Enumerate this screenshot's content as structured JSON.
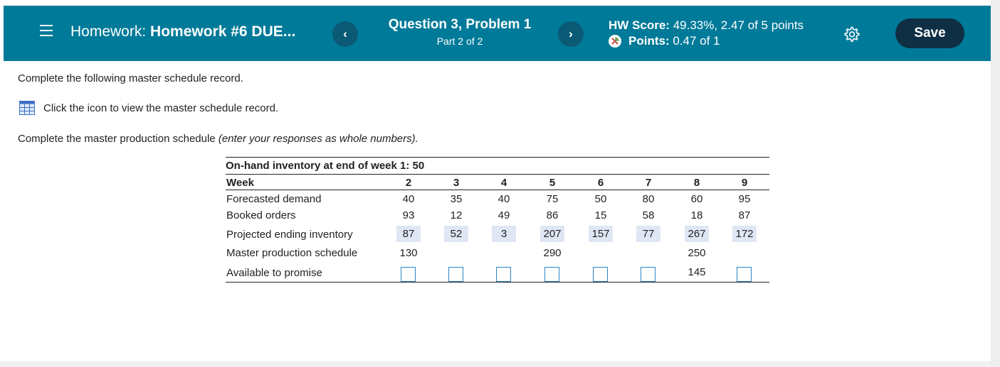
{
  "header": {
    "hw_prefix": "Homework:",
    "hw_name": "Homework #6 DUE...",
    "question_title": "Question 3, Problem 1",
    "question_part": "Part 2 of 2",
    "hw_score_label": "HW Score:",
    "hw_score_value": "49.33%, 2.47 of 5 points",
    "points_label": "Points:",
    "points_value": "0.47 of 1",
    "save_label": "Save",
    "prev_symbol": "‹",
    "next_symbol": "›",
    "colors": {
      "bar": "#007a99",
      "nav": "#0b5a75",
      "save": "#0f2f44"
    }
  },
  "content": {
    "instruction": "Complete the following master schedule record.",
    "icon_link_text": "Click the icon to view the master schedule record.",
    "complete_text": "Complete the master production schedule ",
    "complete_hint": "(enter your responses as whole numbers)."
  },
  "table": {
    "onhand": "On-hand inventory at end of week 1: 50",
    "week_label": "Week",
    "weeks": [
      "2",
      "3",
      "4",
      "5",
      "6",
      "7",
      "8",
      "9"
    ],
    "rows": {
      "forecast": {
        "label": "Forecasted demand",
        "values": [
          "40",
          "35",
          "40",
          "75",
          "50",
          "80",
          "60",
          "95"
        ]
      },
      "booked": {
        "label": "Booked orders",
        "values": [
          "93",
          "12",
          "49",
          "86",
          "15",
          "58",
          "18",
          "87"
        ]
      },
      "projected": {
        "label": "Projected ending inventory",
        "values": [
          "87",
          "52",
          "3",
          "207",
          "157",
          "77",
          "267",
          "172"
        ]
      },
      "mps": {
        "label": "Master production schedule",
        "values": [
          "130",
          "",
          "",
          "290",
          "",
          "",
          "250",
          ""
        ]
      },
      "atp": {
        "label": "Available to promise",
        "values": [
          "",
          "",
          "",
          "",
          "",
          "",
          "145",
          ""
        ]
      }
    }
  }
}
